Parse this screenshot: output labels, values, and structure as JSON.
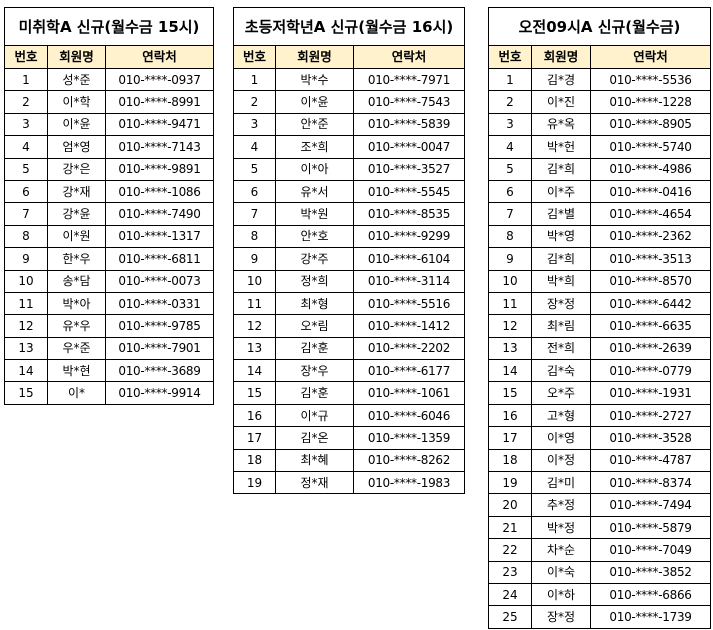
{
  "tables": [
    {
      "title": "미취학A 신규(월수금 15시)",
      "headers": [
        "번호",
        "회원명",
        "연락처"
      ],
      "rows": [
        [
          "1",
          "성*준",
          "010-****-0937"
        ],
        [
          "2",
          "이*학",
          "010-****-8991"
        ],
        [
          "3",
          "이*윤",
          "010-****-9471"
        ],
        [
          "4",
          "엄*영",
          "010-****-7143"
        ],
        [
          "5",
          "강*은",
          "010-****-9891"
        ],
        [
          "6",
          "강*재",
          "010-****-1086"
        ],
        [
          "7",
          "강*윤",
          "010-****-7490"
        ],
        [
          "8",
          "이*원",
          "010-****-1317"
        ],
        [
          "9",
          "한*우",
          "010-****-6811"
        ],
        [
          "10",
          "송*담",
          "010-****-0073"
        ],
        [
          "11",
          "박*아",
          "010-****-0331"
        ],
        [
          "12",
          "유*우",
          "010-****-9785"
        ],
        [
          "13",
          "우*준",
          "010-****-7901"
        ],
        [
          "14",
          "박*현",
          "010-****-3689"
        ],
        [
          "15",
          "이*",
          "010-****-9914"
        ]
      ]
    },
    {
      "title": "초등저학년A 신규(월수금 16시)",
      "headers": [
        "번호",
        "회원명",
        "연락처"
      ],
      "rows": [
        [
          "1",
          "박*수",
          "010-****-7971"
        ],
        [
          "2",
          "이*윤",
          "010-****-7543"
        ],
        [
          "3",
          "안*준",
          "010-****-5839"
        ],
        [
          "4",
          "조*희",
          "010-****-0047"
        ],
        [
          "5",
          "이*아",
          "010-****-3527"
        ],
        [
          "6",
          "유*서",
          "010-****-5545"
        ],
        [
          "7",
          "박*원",
          "010-****-8535"
        ],
        [
          "8",
          "안*호",
          "010-****-9299"
        ],
        [
          "9",
          "강*주",
          "010-****-6104"
        ],
        [
          "10",
          "정*희",
          "010-****-3114"
        ],
        [
          "11",
          "최*형",
          "010-****-5516"
        ],
        [
          "12",
          "오*림",
          "010-****-1412"
        ],
        [
          "13",
          "김*훈",
          "010-****-2202"
        ],
        [
          "14",
          "장*우",
          "010-****-6177"
        ],
        [
          "15",
          "김*훈",
          "010-****-1061"
        ],
        [
          "16",
          "이*규",
          "010-****-6046"
        ],
        [
          "17",
          "김*온",
          "010-****-1359"
        ],
        [
          "18",
          "최*혜",
          "010-****-8262"
        ],
        [
          "19",
          "정*재",
          "010-****-1983"
        ]
      ]
    },
    {
      "title": "오전09시A 신규(월수금)",
      "headers": [
        "번호",
        "회원명",
        "연락처"
      ],
      "rows": [
        [
          "1",
          "김*경",
          "010-****-5536"
        ],
        [
          "2",
          "이*진",
          "010-****-1228"
        ],
        [
          "3",
          "유*옥",
          "010-****-8905"
        ],
        [
          "4",
          "박*헌",
          "010-****-5740"
        ],
        [
          "5",
          "김*희",
          "010-****-4986"
        ],
        [
          "6",
          "이*주",
          "010-****-0416"
        ],
        [
          "7",
          "김*별",
          "010-****-4654"
        ],
        [
          "8",
          "박*영",
          "010-****-2362"
        ],
        [
          "9",
          "김*희",
          "010-****-3513"
        ],
        [
          "10",
          "박*희",
          "010-****-8570"
        ],
        [
          "11",
          "장*정",
          "010-****-6442"
        ],
        [
          "12",
          "최*림",
          "010-****-6635"
        ],
        [
          "13",
          "전*희",
          "010-****-2639"
        ],
        [
          "14",
          "김*숙",
          "010-****-0779"
        ],
        [
          "15",
          "오*주",
          "010-****-1931"
        ],
        [
          "16",
          "고*형",
          "010-****-2727"
        ],
        [
          "17",
          "이*영",
          "010-****-3528"
        ],
        [
          "18",
          "이*정",
          "010-****-4787"
        ],
        [
          "19",
          "김*미",
          "010-****-8374"
        ],
        [
          "20",
          "추*정",
          "010-****-7494"
        ],
        [
          "21",
          "박*정",
          "010-****-5879"
        ],
        [
          "22",
          "차*순",
          "010-****-7049"
        ],
        [
          "23",
          "이*숙",
          "010-****-3852"
        ],
        [
          "24",
          "이*하",
          "010-****-6866"
        ],
        [
          "25",
          "장*정",
          "010-****-1739"
        ]
      ]
    }
  ],
  "colors": {
    "header_bg": "#fff2cc",
    "border": "#000000"
  }
}
